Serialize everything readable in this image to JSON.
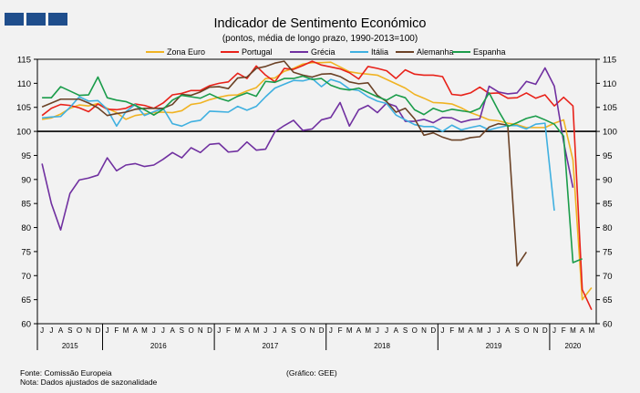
{
  "chart_data": {
    "type": "line",
    "title": "Indicador de Sentimento Económico",
    "subtitle": "(pontos, média de longo prazo, 1990-2013=100)",
    "ylim": [
      60,
      115
    ],
    "yticks": [
      60,
      65,
      70,
      75,
      80,
      85,
      90,
      95,
      100,
      105,
      110,
      115
    ],
    "reference_line": 100,
    "grid": false,
    "legend": "top",
    "x": [
      "J",
      "J",
      "A",
      "S",
      "O",
      "N",
      "D",
      "J",
      "F",
      "M",
      "A",
      "M",
      "J",
      "J",
      "A",
      "S",
      "O",
      "N",
      "D",
      "J",
      "F",
      "M",
      "A",
      "M",
      "J",
      "J",
      "A",
      "S",
      "O",
      "N",
      "D",
      "J",
      "F",
      "M",
      "A",
      "M",
      "J",
      "J",
      "A",
      "S",
      "O",
      "N",
      "D",
      "J",
      "F",
      "M",
      "A",
      "M",
      "J",
      "J",
      "A",
      "S",
      "O",
      "N",
      "D",
      "J",
      "F",
      "M",
      "A",
      "M"
    ],
    "years": [
      {
        "label": "2015",
        "start": 0,
        "end": 6
      },
      {
        "label": "2016",
        "start": 7,
        "end": 18
      },
      {
        "label": "2017",
        "start": 19,
        "end": 30
      },
      {
        "label": "2018",
        "start": 31,
        "end": 42
      },
      {
        "label": "2019",
        "start": 43,
        "end": 54
      },
      {
        "label": "2020",
        "start": 55,
        "end": 59
      }
    ],
    "series": [
      {
        "name": "Zona Euro",
        "color": "#f0b323",
        "values": [
          102.5,
          102.8,
          103.6,
          104.8,
          105.5,
          105.3,
          105.8,
          104.8,
          103.9,
          102.5,
          103.3,
          103.6,
          103.9,
          104.0,
          103.9,
          104.3,
          105.6,
          105.9,
          106.6,
          107.1,
          107.5,
          107.6,
          108.4,
          109.1,
          111.0,
          111.1,
          112.5,
          113.1,
          114.0,
          114.3,
          114.3,
          114.4,
          113.4,
          112.4,
          112.1,
          111.9,
          111.7,
          110.8,
          109.9,
          109.0,
          107.7,
          106.9,
          106.0,
          105.9,
          105.7,
          104.9,
          103.9,
          103.2,
          102.4,
          102.2,
          101.7,
          101.4,
          100.8,
          100.8,
          100.8,
          101.7,
          102.4,
          94.0,
          65.0,
          67.5
        ]
      },
      {
        "name": "Portugal",
        "color": "#e8221a",
        "values": [
          103.3,
          104.8,
          105.6,
          105.4,
          104.9,
          104.1,
          105.7,
          104.6,
          104.5,
          104.8,
          105.7,
          105.4,
          104.8,
          105.9,
          107.6,
          107.9,
          108.5,
          108.5,
          109.5,
          110.0,
          110.3,
          112.1,
          111.0,
          113.6,
          111.7,
          110.3,
          113.1,
          112.9,
          113.7,
          114.6,
          113.8,
          113.4,
          113.0,
          112.2,
          110.9,
          113.5,
          113.1,
          112.6,
          111.0,
          112.8,
          111.9,
          111.7,
          111.7,
          111.4,
          107.7,
          107.5,
          108.0,
          109.2,
          107.9,
          108.0,
          106.9,
          107.0,
          108.0,
          106.9,
          107.6,
          105.3,
          107.1,
          105.3,
          67.1,
          62.9
        ]
      },
      {
        "name": "Grécia",
        "color": "#7030a0",
        "values": [
          93.3,
          85.0,
          79.5,
          87.1,
          89.9,
          90.3,
          90.9,
          94.5,
          91.8,
          93.0,
          93.3,
          92.7,
          93.0,
          94.2,
          95.6,
          94.5,
          96.6,
          95.6,
          97.3,
          97.5,
          95.7,
          95.9,
          97.8,
          96.1,
          96.3,
          99.9,
          101.2,
          102.3,
          100.2,
          100.5,
          102.4,
          102.9,
          106.0,
          101.1,
          104.5,
          105.4,
          103.9,
          105.9,
          105.2,
          102.1,
          102.1,
          102.5,
          101.8,
          102.9,
          102.8,
          101.9,
          102.4,
          102.6,
          109.4,
          108.2,
          107.8,
          108.0,
          110.4,
          109.8,
          113.2,
          109.4,
          97.8,
          88.3,
          null,
          null
        ]
      },
      {
        "name": "Itália",
        "color": "#3fb0e0",
        "values": [
          102.8,
          103.0,
          103.1,
          105.0,
          107.2,
          106.3,
          106.4,
          104.6,
          101.1,
          104.1,
          105.6,
          103.3,
          104.1,
          104.8,
          101.6,
          101.1,
          102.0,
          102.3,
          104.2,
          104.1,
          104.0,
          105.2,
          104.4,
          105.2,
          107.2,
          109.0,
          109.8,
          110.6,
          110.5,
          111.0,
          109.3,
          110.8,
          110.2,
          108.8,
          108.5,
          107.2,
          106.3,
          105.8,
          103.4,
          102.4,
          101.4,
          101.0,
          101.0,
          100.0,
          101.3,
          100.3,
          100.8,
          101.2,
          100.3,
          100.8,
          101.2,
          101.2,
          100.5,
          101.5,
          101.7,
          83.5,
          null,
          null,
          null,
          null
        ]
      },
      {
        "name": "Alemanha",
        "color": "#6b4226",
        "values": [
          105.1,
          105.9,
          106.7,
          106.7,
          106.7,
          105.9,
          104.9,
          103.3,
          103.7,
          104.0,
          104.6,
          104.8,
          104.8,
          104.8,
          105.6,
          107.7,
          107.5,
          108.2,
          109.2,
          109.3,
          108.9,
          111.1,
          111.3,
          113.1,
          113.5,
          114.2,
          114.6,
          112.3,
          111.7,
          111.3,
          111.9,
          112.0,
          111.4,
          110.3,
          109.9,
          110.1,
          107.5,
          106.2,
          104.0,
          104.8,
          102.6,
          99.2,
          99.7,
          98.8,
          98.2,
          98.2,
          98.7,
          98.9,
          100.9,
          101.6,
          101.3,
          72.0,
          74.9,
          null,
          null,
          null,
          null,
          null,
          null,
          null
        ]
      },
      {
        "name": "Espanha",
        "color": "#1a9c4a",
        "values": [
          107.0,
          107.0,
          109.3,
          108.4,
          107.5,
          107.6,
          111.3,
          107.0,
          106.5,
          106.2,
          105.4,
          104.5,
          103.4,
          104.6,
          106.5,
          107.5,
          107.2,
          106.9,
          107.8,
          106.9,
          106.3,
          107.3,
          108.0,
          107.3,
          110.4,
          110.2,
          111.0,
          111.0,
          111.5,
          110.8,
          111.0,
          109.6,
          108.9,
          108.6,
          109.0,
          108.1,
          107.2,
          106.5,
          107.6,
          107.0,
          104.5,
          103.5,
          104.8,
          104.1,
          104.6,
          104.3,
          104.0,
          104.8,
          108.0,
          104.3,
          101.0,
          101.8,
          102.7,
          103.2,
          102.4,
          101.5,
          99.0,
          72.7,
          73.5,
          null
        ]
      }
    ]
  }
}
